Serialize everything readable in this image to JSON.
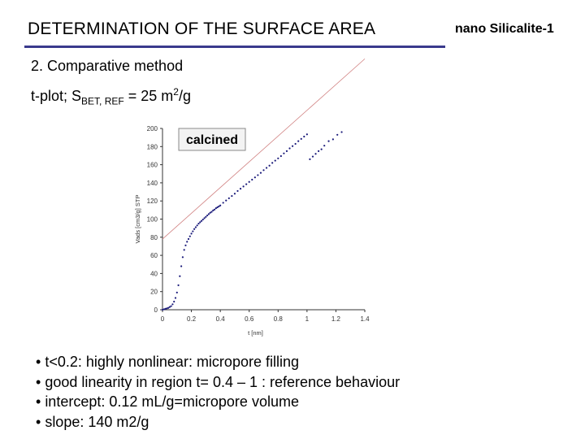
{
  "slide": {
    "title": "DETERMINATION OF THE SURFACE AREA",
    "top_right": "nano Silicalite-1",
    "section": "2. Comparative method",
    "tplot": {
      "prefix": "t-plot;  S",
      "sub": "BET, REF",
      "mid": " = 25 m",
      "sup": "2",
      "suffix": "/g"
    },
    "bullets": [
      "t<0.2: highly nonlinear: micropore filling",
      "good linearity in region t= 0.4 – 1 : reference behaviour",
      "intercept: 0.12 mL/g=micropore volume",
      "slope: 140 m2/g"
    ]
  },
  "chart_data": {
    "type": "scatter",
    "tag": "calcined",
    "xlabel": "t [nm]",
    "ylabel": "Vads [cm3/g] STP",
    "xlim": [
      0,
      1.4
    ],
    "ylim": [
      0,
      200
    ],
    "xticks": [
      "0",
      "0.2",
      "0.4",
      "0.6",
      "0.8",
      "1",
      "1.2",
      "1.4"
    ],
    "yticks": [
      "0",
      "20",
      "40",
      "60",
      "80",
      "100",
      "120",
      "140",
      "160",
      "180",
      "200"
    ],
    "grid": false,
    "colors": {
      "points": "#1a1a7a",
      "fit_line": "#d08080"
    },
    "fit_line": {
      "intercept": 78,
      "slope": 142,
      "x_range": [
        0,
        1.4
      ]
    },
    "series": [
      {
        "x": [
          0.0,
          0.01,
          0.02,
          0.03,
          0.04,
          0.05,
          0.06,
          0.07,
          0.08,
          0.09,
          0.1,
          0.11,
          0.12,
          0.13,
          0.14,
          0.15,
          0.16,
          0.17,
          0.18,
          0.19,
          0.2,
          0.21,
          0.22,
          0.23,
          0.24,
          0.25,
          0.26,
          0.27,
          0.28,
          0.29,
          0.3,
          0.31,
          0.32,
          0.33,
          0.34,
          0.35,
          0.36,
          0.37,
          0.38,
          0.39,
          0.4,
          0.42,
          0.44,
          0.46,
          0.48,
          0.5,
          0.52,
          0.54,
          0.56,
          0.58,
          0.6,
          0.62,
          0.64,
          0.66,
          0.68,
          0.7,
          0.72,
          0.74,
          0.76,
          0.78,
          0.8,
          0.82,
          0.84,
          0.86,
          0.88,
          0.9,
          0.92,
          0.94,
          0.96,
          0.98,
          1.0,
          1.02,
          1.04,
          1.06,
          1.08,
          1.1,
          1.12,
          1.15,
          1.18,
          1.21,
          1.24
        ],
        "y": [
          0,
          0.5,
          1,
          1.5,
          2,
          3,
          4,
          6,
          9,
          13,
          19,
          27,
          37,
          48,
          58,
          66,
          71,
          75,
          78,
          81,
          84,
          86.5,
          89,
          91,
          93,
          95,
          96.5,
          98,
          99.5,
          101,
          102.5,
          104,
          105.5,
          107,
          108,
          109.5,
          110.5,
          112,
          113,
          114,
          115,
          118,
          120.5,
          123,
          125.5,
          128,
          131,
          133.5,
          136,
          138.5,
          141,
          143.5,
          146,
          148.5,
          151,
          154,
          156.5,
          159,
          162,
          164.5,
          167,
          169.5,
          172.5,
          175,
          178,
          180.5,
          183,
          186,
          188.5,
          191,
          193.5,
          166,
          169,
          172,
          175,
          177,
          181,
          186,
          188,
          193,
          196
        ]
      }
    ]
  }
}
